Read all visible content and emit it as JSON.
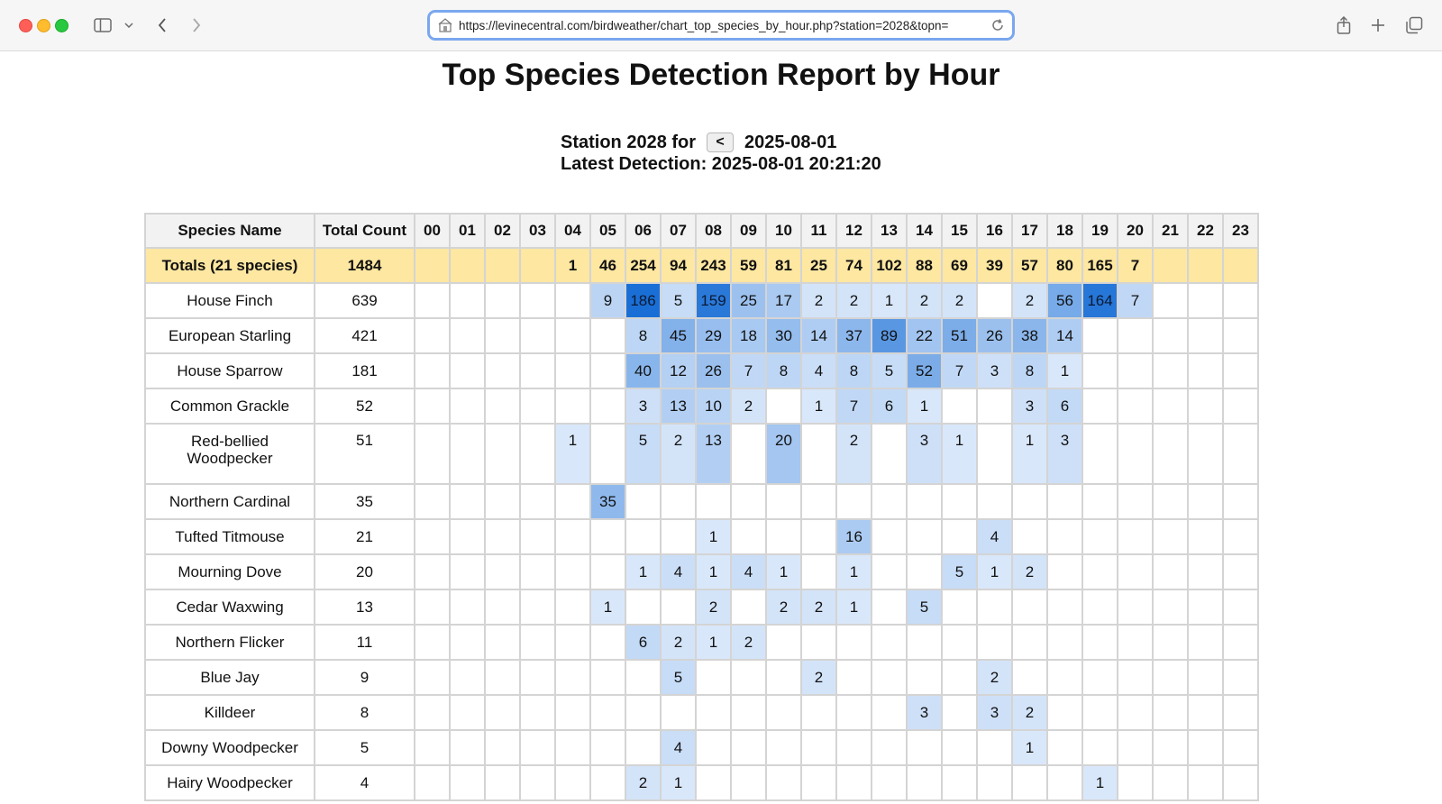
{
  "browser": {
    "url": "https://levinecentral.com/birdweather/chart_top_species_by_hour.php?station=2028&topn="
  },
  "page": {
    "title": "Top Species Detection Report by Hour",
    "station_label": "Station 2028 for",
    "prev_button": "<",
    "date": "2025-08-01",
    "latest_detection": "Latest Detection: 2025-08-01 20:21:20"
  },
  "table": {
    "headers": [
      "Species Name",
      "Total Count",
      "00",
      "01",
      "02",
      "03",
      "04",
      "05",
      "06",
      "07",
      "08",
      "09",
      "10",
      "11",
      "12",
      "13",
      "14",
      "15",
      "16",
      "17",
      "18",
      "19",
      "20",
      "21",
      "22",
      "23"
    ],
    "totals": {
      "label": "Totals (21 species)",
      "total": "1484",
      "hours": [
        "",
        "",
        "",
        "",
        "1",
        "46",
        "254",
        "94",
        "243",
        "59",
        "81",
        "25",
        "74",
        "102",
        "88",
        "69",
        "39",
        "57",
        "80",
        "165",
        "7",
        "",
        "",
        ""
      ]
    },
    "rows": [
      {
        "name": "House Finch",
        "total": "639",
        "hours": [
          "",
          "",
          "",
          "",
          "",
          "9",
          "186",
          "5",
          "159",
          "25",
          "17",
          "2",
          "2",
          "1",
          "2",
          "2",
          "",
          "2",
          "56",
          "164",
          "7",
          "",
          "",
          ""
        ]
      },
      {
        "name": "European Starling",
        "total": "421",
        "hours": [
          "",
          "",
          "",
          "",
          "",
          "",
          "8",
          "45",
          "29",
          "18",
          "30",
          "14",
          "37",
          "89",
          "22",
          "51",
          "26",
          "38",
          "14",
          "",
          "",
          "",
          "",
          ""
        ]
      },
      {
        "name": "House Sparrow",
        "total": "181",
        "hours": [
          "",
          "",
          "",
          "",
          "",
          "",
          "40",
          "12",
          "26",
          "7",
          "8",
          "4",
          "8",
          "5",
          "52",
          "7",
          "3",
          "8",
          "1",
          "",
          "",
          "",
          "",
          ""
        ]
      },
      {
        "name": "Common Grackle",
        "total": "52",
        "hours": [
          "",
          "",
          "",
          "",
          "",
          "",
          "3",
          "13",
          "10",
          "2",
          "",
          "1",
          "7",
          "6",
          "1",
          "",
          "",
          "3",
          "6",
          "",
          "",
          "",
          "",
          ""
        ]
      },
      {
        "name": "Red-bellied Woodpecker",
        "total": "51",
        "hours": [
          "",
          "",
          "",
          "",
          "1",
          "",
          "5",
          "2",
          "13",
          "",
          "20",
          "",
          "2",
          "",
          "3",
          "1",
          "",
          "1",
          "3",
          "",
          "",
          "",
          "",
          ""
        ]
      },
      {
        "name": "Northern Cardinal",
        "total": "35",
        "hours": [
          "",
          "",
          "",
          "",
          "",
          "35",
          "",
          "",
          "",
          "",
          "",
          "",
          "",
          "",
          "",
          "",
          "",
          "",
          "",
          "",
          "",
          "",
          "",
          ""
        ]
      },
      {
        "name": "Tufted Titmouse",
        "total": "21",
        "hours": [
          "",
          "",
          "",
          "",
          "",
          "",
          "",
          "",
          "1",
          "",
          "",
          "",
          "16",
          "",
          "",
          "",
          "4",
          "",
          "",
          "",
          "",
          "",
          "",
          ""
        ]
      },
      {
        "name": "Mourning Dove",
        "total": "20",
        "hours": [
          "",
          "",
          "",
          "",
          "",
          "",
          "1",
          "4",
          "1",
          "4",
          "1",
          "",
          "1",
          "",
          "",
          "5",
          "1",
          "2",
          "",
          "",
          "",
          "",
          "",
          ""
        ]
      },
      {
        "name": "Cedar Waxwing",
        "total": "13",
        "hours": [
          "",
          "",
          "",
          "",
          "",
          "1",
          "",
          "",
          "2",
          "",
          "2",
          "2",
          "1",
          "",
          "5",
          "",
          "",
          "",
          "",
          "",
          "",
          "",
          "",
          ""
        ]
      },
      {
        "name": "Northern Flicker",
        "total": "11",
        "hours": [
          "",
          "",
          "",
          "",
          "",
          "",
          "6",
          "2",
          "1",
          "2",
          "",
          "",
          "",
          "",
          "",
          "",
          "",
          "",
          "",
          "",
          "",
          "",
          "",
          ""
        ]
      },
      {
        "name": "Blue Jay",
        "total": "9",
        "hours": [
          "",
          "",
          "",
          "",
          "",
          "",
          "",
          "5",
          "",
          "",
          "",
          "2",
          "",
          "",
          "",
          "",
          "2",
          "",
          "",
          "",
          "",
          "",
          "",
          ""
        ]
      },
      {
        "name": "Killdeer",
        "total": "8",
        "hours": [
          "",
          "",
          "",
          "",
          "",
          "",
          "",
          "",
          "",
          "",
          "",
          "",
          "",
          "",
          "3",
          "",
          "3",
          "2",
          "",
          "",
          "",
          "",
          "",
          ""
        ]
      },
      {
        "name": "Downy Woodpecker",
        "total": "5",
        "hours": [
          "",
          "",
          "",
          "",
          "",
          "",
          "",
          "4",
          "",
          "",
          "",
          "",
          "",
          "",
          "",
          "",
          "",
          "1",
          "",
          "",
          "",
          "",
          "",
          ""
        ]
      },
      {
        "name": "Hairy Woodpecker",
        "total": "4",
        "hours": [
          "",
          "",
          "",
          "",
          "",
          "",
          "2",
          "1",
          "",
          "",
          "",
          "",
          "",
          "",
          "",
          "",
          "",
          "",
          "",
          "1",
          "",
          "",
          "",
          ""
        ]
      }
    ]
  },
  "colors": {
    "totals_row": "#fde7a1",
    "header_bg": "#f2f2f2",
    "scale_low": "#e8f1fd",
    "scale_high": "#1a6fd6"
  }
}
